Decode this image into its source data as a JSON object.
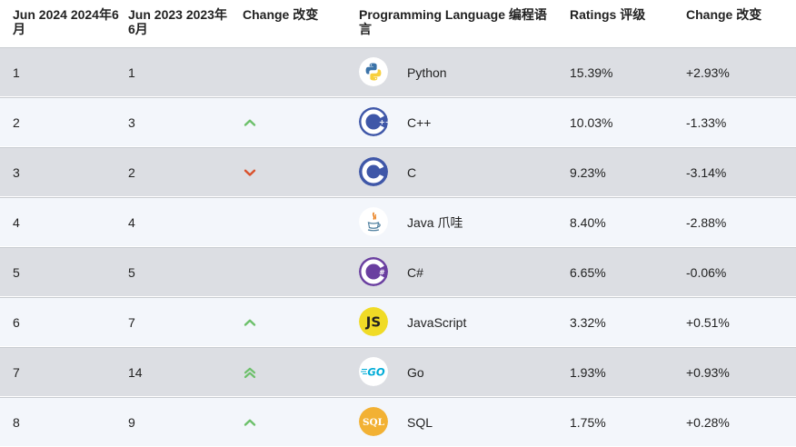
{
  "headers": {
    "col1": "Jun 2024 2024年6月",
    "col2": "Jun 2023 2023年6月",
    "col3": "Change 改变",
    "col4": "Programming Language 编程语言",
    "col5": "Ratings 评级",
    "col6": "Change 改变"
  },
  "rows": [
    {
      "jun2024": "1",
      "jun2023": "1",
      "trend": "none",
      "icon": "python-logo-icon",
      "language": "Python",
      "rating": "15.39%",
      "change": "+2.93%"
    },
    {
      "jun2024": "2",
      "jun2023": "3",
      "trend": "up",
      "icon": "cplusplus-logo-icon",
      "language": "C++",
      "rating": "10.03%",
      "change": "-1.33%"
    },
    {
      "jun2024": "3",
      "jun2023": "2",
      "trend": "down",
      "icon": "c-logo-icon",
      "language": "C",
      "rating": "9.23%",
      "change": "-3.14%"
    },
    {
      "jun2024": "4",
      "jun2023": "4",
      "trend": "none",
      "icon": "java-logo-icon",
      "language": "Java 爪哇",
      "rating": "8.40%",
      "change": "-2.88%"
    },
    {
      "jun2024": "5",
      "jun2023": "5",
      "trend": "none",
      "icon": "csharp-logo-icon",
      "language": "C#",
      "rating": "6.65%",
      "change": "-0.06%"
    },
    {
      "jun2024": "6",
      "jun2023": "7",
      "trend": "up",
      "icon": "javascript-logo-icon",
      "language": "JavaScript",
      "rating": "3.32%",
      "change": "+0.51%"
    },
    {
      "jun2024": "7",
      "jun2023": "14",
      "trend": "double-up",
      "icon": "go-logo-icon",
      "language": "Go",
      "rating": "1.93%",
      "change": "+0.93%"
    },
    {
      "jun2024": "8",
      "jun2023": "9",
      "trend": "up",
      "icon": "sql-logo-icon",
      "language": "SQL",
      "rating": "1.75%",
      "change": "+0.28%"
    }
  ],
  "colors": {
    "up": "#6cc06a",
    "down": "#d9512c",
    "cplusplus": "#3f57a8",
    "c": "#3f57a8",
    "csharp": "#6a3fa0",
    "javascript": "#f0db26",
    "go": "#00acd7",
    "sql": "#f2b134"
  },
  "logos": {
    "javascript_text": "JS",
    "go_text": "GO",
    "sql_text": "SQL"
  }
}
